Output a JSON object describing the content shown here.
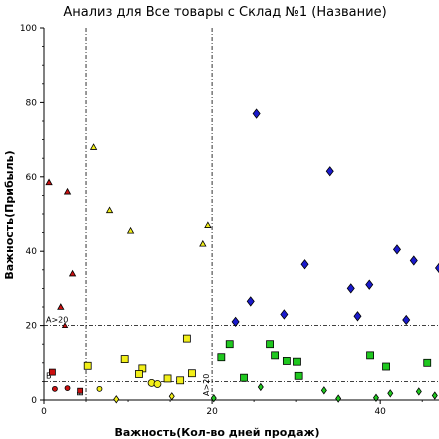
{
  "colors": {
    "red": "#cc1010",
    "yellow": "#f2ef19",
    "green": "#1fc81f",
    "blue": "#1a1acc",
    "stroke": "#000000"
  },
  "chart_data": {
    "type": "scatter",
    "title": "Анализ для Все товары с Склад №1 (Название)",
    "xlabel": "Важность(Кол-во дней продаж)",
    "ylabel": "Важность(Прибыль)",
    "xlim": [
      0,
      47
    ],
    "ylim": [
      0,
      100
    ],
    "xticks": [
      "0",
      "20",
      "40"
    ],
    "yticks": [
      "0",
      "20",
      "40",
      "60",
      "80",
      "100"
    ],
    "thresholds": {
      "vertical": [
        5,
        20
      ],
      "horizontal": [
        5,
        20
      ]
    },
    "annotations": [
      "A>20",
      "B",
      "A>20",
      "B"
    ],
    "series": [
      {
        "color": "red",
        "points": [
          {
            "x": 0.6,
            "y": 58.5,
            "shape": "triangle",
            "size": 6
          },
          {
            "x": 2.8,
            "y": 56,
            "shape": "triangle",
            "size": 6
          },
          {
            "x": 3.4,
            "y": 34,
            "shape": "triangle",
            "size": 6
          },
          {
            "x": 2.0,
            "y": 25,
            "shape": "triangle",
            "size": 6
          },
          {
            "x": 2.5,
            "y": 20,
            "shape": "triangle",
            "size": 5
          },
          {
            "x": 1.0,
            "y": 7.5,
            "shape": "square",
            "size": 6
          },
          {
            "x": 4.3,
            "y": 2.5,
            "shape": "square",
            "size": 5
          },
          {
            "x": 1.3,
            "y": 3,
            "shape": "circle",
            "size": 5
          },
          {
            "x": 2.8,
            "y": 3.2,
            "shape": "circle",
            "size": 5
          }
        ]
      },
      {
        "color": "yellow",
        "points": [
          {
            "x": 5.9,
            "y": 68,
            "shape": "triangle",
            "size": 6
          },
          {
            "x": 7.8,
            "y": 51,
            "shape": "triangle",
            "size": 6
          },
          {
            "x": 10.3,
            "y": 45.5,
            "shape": "triangle",
            "size": 6
          },
          {
            "x": 18.9,
            "y": 42,
            "shape": "triangle",
            "size": 6
          },
          {
            "x": 19.5,
            "y": 47,
            "shape": "triangle",
            "size": 6
          },
          {
            "x": 17.0,
            "y": 16.5,
            "shape": "square",
            "size": 7
          },
          {
            "x": 5.2,
            "y": 9.2,
            "shape": "square",
            "size": 7
          },
          {
            "x": 9.6,
            "y": 11,
            "shape": "square",
            "size": 7
          },
          {
            "x": 11.7,
            "y": 8.5,
            "shape": "square",
            "size": 7
          },
          {
            "x": 11.3,
            "y": 7,
            "shape": "square",
            "size": 7
          },
          {
            "x": 14.7,
            "y": 5.8,
            "shape": "square",
            "size": 7
          },
          {
            "x": 17.6,
            "y": 7.2,
            "shape": "square",
            "size": 7
          },
          {
            "x": 16.2,
            "y": 5.3,
            "shape": "square",
            "size": 7
          },
          {
            "x": 12.8,
            "y": 4.6,
            "shape": "circle",
            "size": 7
          },
          {
            "x": 13.5,
            "y": 4.3,
            "shape": "circle",
            "size": 7
          },
          {
            "x": 6.6,
            "y": 3,
            "shape": "circle",
            "size": 5
          },
          {
            "x": 8.6,
            "y": 0.2,
            "shape": "diamond",
            "size": 5
          },
          {
            "x": 15.2,
            "y": 1,
            "shape": "diamond",
            "size": 5
          }
        ]
      },
      {
        "color": "green",
        "points": [
          {
            "x": 21.1,
            "y": 11.5,
            "shape": "square",
            "size": 7
          },
          {
            "x": 22.1,
            "y": 15,
            "shape": "square",
            "size": 7
          },
          {
            "x": 26.9,
            "y": 15,
            "shape": "square",
            "size": 7
          },
          {
            "x": 27.5,
            "y": 12,
            "shape": "square",
            "size": 7
          },
          {
            "x": 28.9,
            "y": 10.5,
            "shape": "square",
            "size": 7
          },
          {
            "x": 30.1,
            "y": 10.3,
            "shape": "square",
            "size": 7
          },
          {
            "x": 30.3,
            "y": 6.5,
            "shape": "square",
            "size": 7
          },
          {
            "x": 23.8,
            "y": 6,
            "shape": "square",
            "size": 7
          },
          {
            "x": 38.8,
            "y": 12,
            "shape": "square",
            "size": 7
          },
          {
            "x": 40.7,
            "y": 9,
            "shape": "square",
            "size": 7
          },
          {
            "x": 45.6,
            "y": 10,
            "shape": "square",
            "size": 7
          },
          {
            "x": 25.8,
            "y": 3.5,
            "shape": "diamond",
            "size": 5
          },
          {
            "x": 33.3,
            "y": 2.6,
            "shape": "diamond",
            "size": 5
          },
          {
            "x": 35.0,
            "y": 0.4,
            "shape": "diamond",
            "size": 5
          },
          {
            "x": 39.5,
            "y": 0.6,
            "shape": "diamond",
            "size": 5
          },
          {
            "x": 41.2,
            "y": 1.8,
            "shape": "diamond",
            "size": 5
          },
          {
            "x": 44.6,
            "y": 2.3,
            "shape": "diamond",
            "size": 5
          },
          {
            "x": 46.5,
            "y": 1.2,
            "shape": "diamond",
            "size": 5
          },
          {
            "x": 20.2,
            "y": 0.5,
            "shape": "diamond",
            "size": 5
          }
        ]
      },
      {
        "color": "blue",
        "points": [
          {
            "x": 25.3,
            "y": 77,
            "shape": "diamond",
            "size": 7
          },
          {
            "x": 34.0,
            "y": 61.5,
            "shape": "diamond",
            "size": 7
          },
          {
            "x": 42.0,
            "y": 40.5,
            "shape": "diamond",
            "size": 7
          },
          {
            "x": 44.0,
            "y": 37.5,
            "shape": "diamond",
            "size": 7
          },
          {
            "x": 47.0,
            "y": 35.5,
            "shape": "diamond",
            "size": 7
          },
          {
            "x": 31.0,
            "y": 36.5,
            "shape": "diamond",
            "size": 7
          },
          {
            "x": 36.5,
            "y": 30,
            "shape": "diamond",
            "size": 7
          },
          {
            "x": 38.7,
            "y": 31,
            "shape": "diamond",
            "size": 7
          },
          {
            "x": 24.6,
            "y": 26.5,
            "shape": "diamond",
            "size": 7
          },
          {
            "x": 28.6,
            "y": 23,
            "shape": "diamond",
            "size": 7
          },
          {
            "x": 37.3,
            "y": 22.5,
            "shape": "diamond",
            "size": 7
          },
          {
            "x": 43.1,
            "y": 21.5,
            "shape": "diamond",
            "size": 7
          },
          {
            "x": 22.8,
            "y": 21,
            "shape": "diamond",
            "size": 7
          }
        ]
      }
    ]
  }
}
